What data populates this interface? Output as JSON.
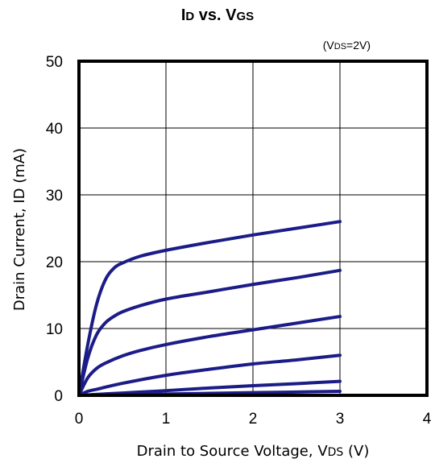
{
  "chart_data": {
    "type": "line",
    "title": {
      "p1": "I",
      "p2": "D",
      "p3": " vs. V",
      "p4": "GS"
    },
    "condition": {
      "p1": "(V",
      "p2": "DS",
      "p3": "=2V)"
    },
    "xlabel": {
      "p1": "Drain to Source Voltage, V",
      "p2": "DS",
      "p3": " (V)"
    },
    "ylabel": "Drain Current, ID (mA)",
    "xlim": [
      0,
      4
    ],
    "ylim": [
      0,
      50
    ],
    "xticks": [
      0,
      1,
      2,
      3,
      4
    ],
    "yticks": [
      0,
      10,
      20,
      30,
      40,
      50
    ],
    "grid": true,
    "series": [
      {
        "x": [
          0,
          0.1,
          0.2,
          0.3,
          0.4,
          0.5,
          0.7,
          1.0,
          1.5,
          2.0,
          2.5,
          3.0
        ],
        "y": [
          0,
          7.5,
          13.5,
          17.2,
          19.0,
          19.8,
          20.8,
          21.7,
          22.9,
          24.0,
          25.0,
          26.0
        ]
      },
      {
        "x": [
          0,
          0.1,
          0.2,
          0.3,
          0.4,
          0.5,
          0.7,
          1.0,
          1.5,
          2.0,
          2.5,
          3.0
        ],
        "y": [
          0,
          5.5,
          9.0,
          10.8,
          11.8,
          12.5,
          13.4,
          14.4,
          15.5,
          16.6,
          17.6,
          18.7
        ]
      },
      {
        "x": [
          0,
          0.1,
          0.2,
          0.3,
          0.5,
          0.7,
          1.0,
          1.5,
          2.0,
          2.5,
          3.0
        ],
        "y": [
          0,
          2.6,
          4.0,
          4.8,
          5.9,
          6.7,
          7.6,
          8.8,
          9.8,
          10.8,
          11.8
        ]
      },
      {
        "x": [
          0,
          0.1,
          0.2,
          0.5,
          1.0,
          1.5,
          2.0,
          2.5,
          3.0
        ],
        "y": [
          0,
          0.6,
          0.9,
          1.8,
          3.0,
          3.9,
          4.7,
          5.3,
          6.0
        ]
      },
      {
        "x": [
          0,
          0.5,
          1.0,
          1.5,
          2.0,
          2.5,
          3.0
        ],
        "y": [
          0,
          0.35,
          0.7,
          1.1,
          1.45,
          1.75,
          2.1
        ]
      },
      {
        "x": [
          0,
          1.0,
          2.0,
          3.0
        ],
        "y": [
          0,
          0.2,
          0.4,
          0.6
        ]
      }
    ],
    "line_color": "#1c1c88",
    "grid_color": "#000000"
  }
}
